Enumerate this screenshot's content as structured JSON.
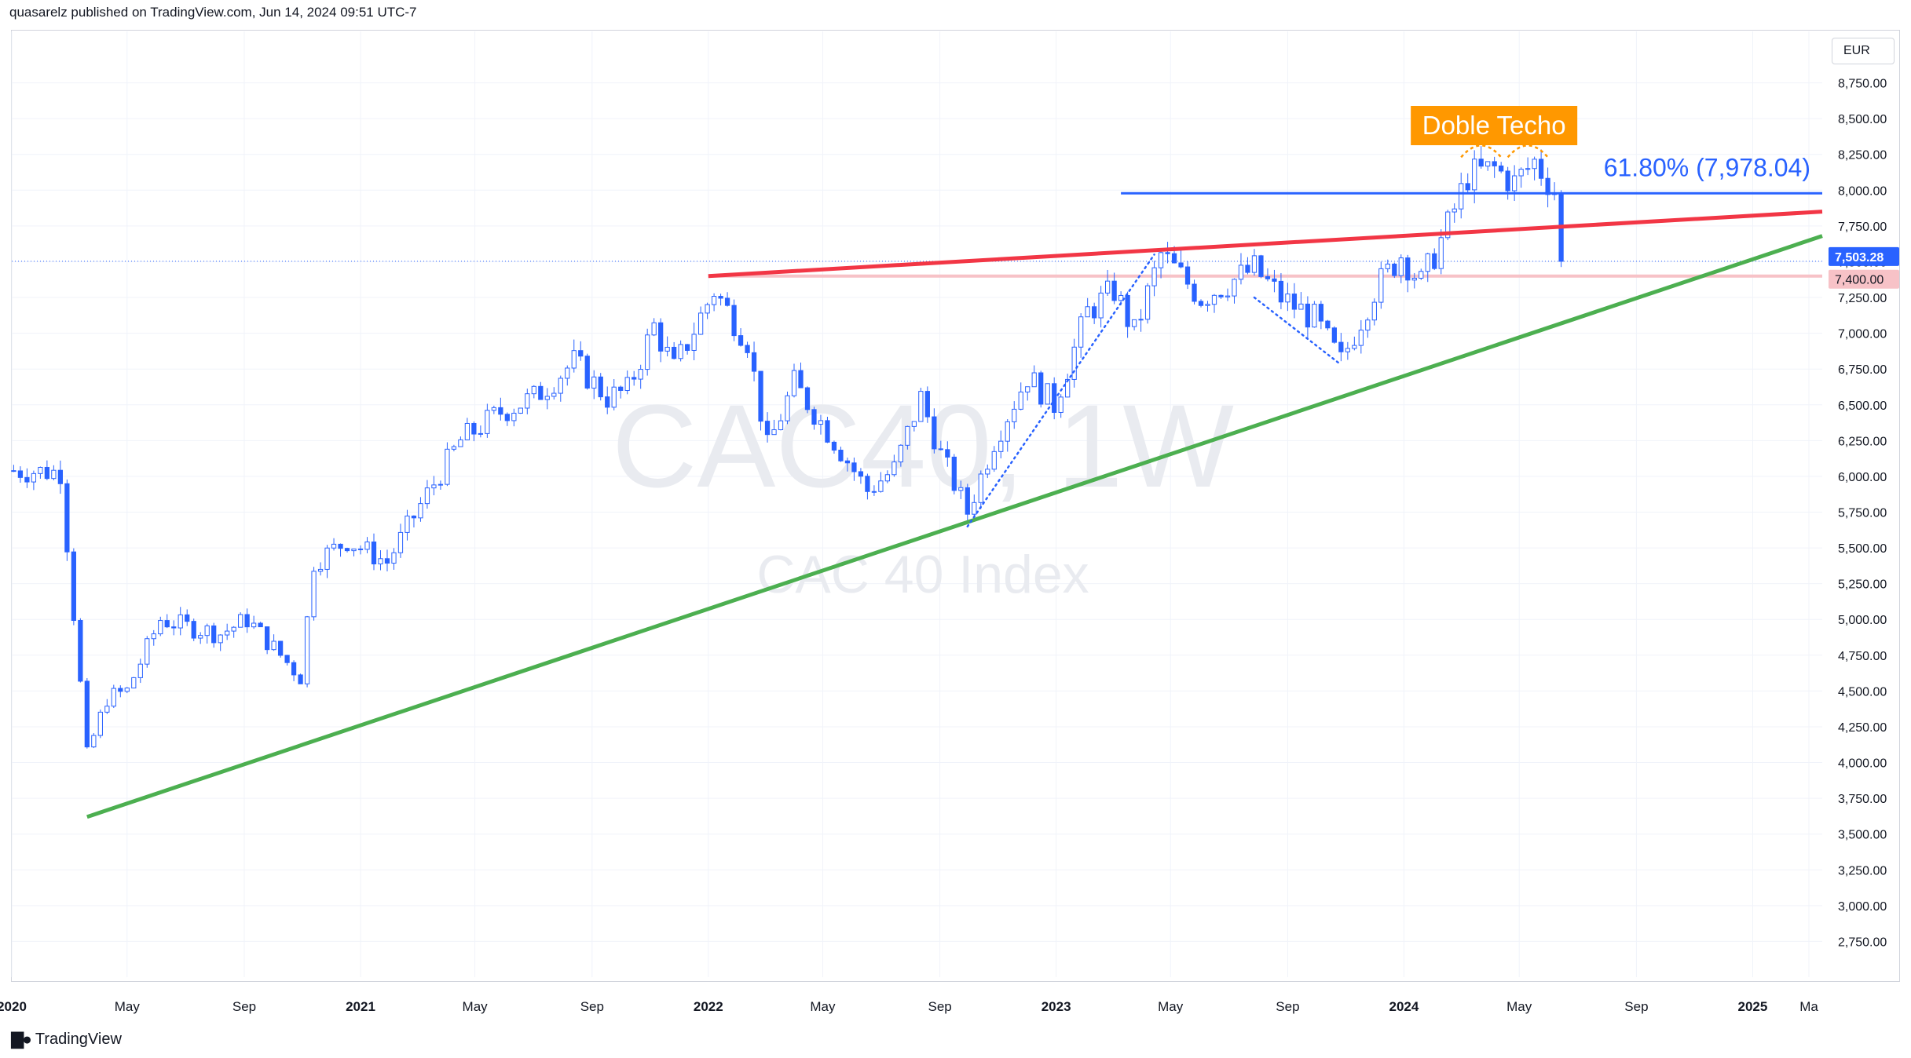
{
  "header": {
    "attribution": "quasarelz published on TradingView.com, Jun 14, 2024 09:51 UTC-7"
  },
  "footer": {
    "brand": "TradingView",
    "logo_icon": "tradingview-logo-icon"
  },
  "currency": "EUR",
  "watermark": {
    "symbol": "CAC40, 1W",
    "name": "CAC 40 Index"
  },
  "chart_data": {
    "type": "candlestick",
    "y_axis": {
      "ylim": [
        2500,
        9000
      ],
      "ticks": [
        2750,
        3000,
        3250,
        3500,
        3750,
        4000,
        4250,
        4500,
        4750,
        5000,
        5250,
        5500,
        5750,
        6000,
        6250,
        6500,
        6750,
        7000,
        7250,
        7500,
        7750,
        8000,
        8250,
        8500,
        8750
      ],
      "tick_labels": [
        "2,750.00",
        "3,000.00",
        "3,250.00",
        "3,500.00",
        "3,750.00",
        "4,000.00",
        "4,250.00",
        "4,500.00",
        "4,750.00",
        "5,000.00",
        "5,250.00",
        "5,500.00",
        "5,750.00",
        "6,000.00",
        "6,250.00",
        "6,500.00",
        "6,750.00",
        "7,000.00",
        "7,250.00",
        "7,500.00",
        "7,750.00",
        "8,000.00",
        "8,250.00",
        "8,500.00",
        "8,750.00"
      ],
      "position": "right"
    },
    "x_axis": {
      "range": [
        "2020-01-01",
        "2025-03-15"
      ],
      "ticks": [
        {
          "date": "2020-01-01",
          "label": "2020",
          "bold": true
        },
        {
          "date": "2020-05-01",
          "label": "May",
          "bold": false
        },
        {
          "date": "2020-09-01",
          "label": "Sep",
          "bold": false
        },
        {
          "date": "2021-01-01",
          "label": "2021",
          "bold": true
        },
        {
          "date": "2021-05-01",
          "label": "May",
          "bold": false
        },
        {
          "date": "2021-09-01",
          "label": "Sep",
          "bold": false
        },
        {
          "date": "2022-01-01",
          "label": "2022",
          "bold": true
        },
        {
          "date": "2022-05-01",
          "label": "May",
          "bold": false
        },
        {
          "date": "2022-09-01",
          "label": "Sep",
          "bold": false
        },
        {
          "date": "2023-01-01",
          "label": "2023",
          "bold": true
        },
        {
          "date": "2023-05-01",
          "label": "May",
          "bold": false
        },
        {
          "date": "2023-09-01",
          "label": "Sep",
          "bold": false
        },
        {
          "date": "2024-01-01",
          "label": "2024",
          "bold": true
        },
        {
          "date": "2024-05-01",
          "label": "May",
          "bold": false
        },
        {
          "date": "2024-09-01",
          "label": "Sep",
          "bold": false
        },
        {
          "date": "2025-01-01",
          "label": "2025",
          "bold": true
        },
        {
          "date": "2025-03-01",
          "label": "Ma",
          "bold": false
        }
      ]
    },
    "grid": true,
    "colors": {
      "up": "#ffffff",
      "up_border": "#2962ff",
      "down": "#2962ff",
      "grid": "#f0f3fa"
    },
    "path_points": [
      [
        "2020-01-03",
        6040
      ],
      [
        "2020-02-21",
        6030
      ],
      [
        "2020-03-20",
        4050
      ],
      [
        "2020-04-10",
        4450
      ],
      [
        "2020-05-01",
        4500
      ],
      [
        "2020-06-05",
        5000
      ],
      [
        "2020-07-03",
        4950
      ],
      [
        "2020-08-07",
        4900
      ],
      [
        "2020-09-04",
        5000
      ],
      [
        "2020-10-30",
        4600
      ],
      [
        "2020-11-13",
        5400
      ],
      [
        "2020-12-18",
        5550
      ],
      [
        "2021-01-29",
        5400
      ],
      [
        "2021-03-05",
        5800
      ],
      [
        "2021-04-16",
        6250
      ],
      [
        "2021-05-28",
        6450
      ],
      [
        "2021-07-02",
        6550
      ],
      [
        "2021-08-13",
        6800
      ],
      [
        "2021-09-17",
        6550
      ],
      [
        "2021-10-08",
        6600
      ],
      [
        "2021-11-05",
        7050
      ],
      [
        "2021-11-26",
        6750
      ],
      [
        "2022-01-07",
        7300
      ],
      [
        "2022-02-11",
        6950
      ],
      [
        "2022-03-04",
        6200
      ],
      [
        "2022-04-01",
        6650
      ],
      [
        "2022-05-13",
        6250
      ],
      [
        "2022-06-17",
        5900
      ],
      [
        "2022-07-15",
        6050
      ],
      [
        "2022-08-12",
        6550
      ],
      [
        "2022-09-02",
        6150
      ],
      [
        "2022-09-30",
        5750
      ],
      [
        "2022-10-28",
        6250
      ],
      [
        "2022-12-02",
        6700
      ],
      [
        "2022-12-30",
        6500
      ],
      [
        "2023-02-03",
        7150
      ],
      [
        "2023-03-03",
        7300
      ],
      [
        "2023-03-24",
        7000
      ],
      [
        "2023-04-21",
        7550
      ],
      [
        "2023-06-02",
        7250
      ],
      [
        "2023-07-28",
        7450
      ],
      [
        "2023-08-25",
        7250
      ],
      [
        "2023-09-29",
        7100
      ],
      [
        "2023-10-27",
        6800
      ],
      [
        "2023-12-01",
        7300
      ],
      [
        "2023-12-29",
        7550
      ],
      [
        "2024-01-19",
        7350
      ],
      [
        "2024-02-16",
        7750
      ],
      [
        "2024-03-08",
        8100
      ],
      [
        "2024-04-05",
        8150
      ],
      [
        "2024-04-26",
        8050
      ],
      [
        "2024-05-17",
        8200
      ],
      [
        "2024-06-07",
        8000
      ],
      [
        "2024-06-14",
        7503
      ]
    ],
    "drawings": {
      "fib_level": {
        "label": "61.80% (7,978.04)",
        "value": 7978.04,
        "x_from": "2023-03-10",
        "x_to": "2025-03-15",
        "color": "#2962ff"
      },
      "red_resistance": {
        "points": [
          [
            "2022-01-01",
            7400
          ],
          [
            "2025-03-15",
            7850
          ]
        ],
        "color": "#f23645"
      },
      "green_support": {
        "points": [
          [
            "2020-03-20",
            3620
          ],
          [
            "2025-03-15",
            7680
          ]
        ],
        "color": "#4caf50"
      },
      "pink_zone": {
        "value": 7400,
        "x_from": "2022-01-01",
        "color": "#f7c2c7"
      },
      "dotted_path_1": [
        [
          "2022-09-30",
          5650
        ],
        [
          "2023-04-14",
          7550
        ]
      ],
      "dotted_path_2": [
        [
          "2023-07-28",
          7250
        ],
        [
          "2023-10-27",
          6780
        ]
      ],
      "double_top_arcs": [
        [
          "2024-03-01",
          "2024-04-12"
        ],
        [
          "2024-04-19",
          "2024-05-31"
        ]
      ],
      "annotation": {
        "text": "Doble Techo",
        "date": "2024-04-12",
        "color": "#ff9800"
      }
    },
    "price_labels": [
      {
        "value": 7503.28,
        "text": "7,503.28",
        "bg": "#2962ff",
        "color": "#ffffff"
      },
      {
        "value": 7400.0,
        "text": "7,400.00",
        "bg": "#f7c2c7",
        "color": "#131722"
      }
    ],
    "last_price_line": 7503.28
  }
}
